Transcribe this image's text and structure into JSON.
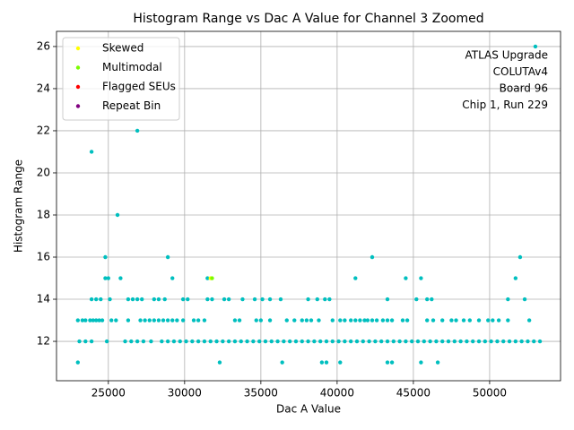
{
  "chart_data": {
    "type": "scatter",
    "title": "Histogram Range vs Dac A Value for Channel 3 Zoomed",
    "x_label": "Dac A Value",
    "y_label": "Histogram Range",
    "annotation": [
      "ATLAS Upgrade",
      "COLUTAv4",
      "Board 96",
      "Chip 1, Run 229"
    ],
    "xlim": [
      21600,
      54650
    ],
    "ylim": [
      10.13,
      26.72
    ],
    "xticks": [
      25000,
      30000,
      35000,
      40000,
      45000,
      50000
    ],
    "yticks": [
      12,
      14,
      16,
      18,
      20,
      22,
      24,
      26
    ],
    "grid": true,
    "legend": "upper left",
    "series": [
      {
        "color": "#00bfbf",
        "x": [
          23000,
          23900,
          25600,
          24800,
          26900,
          28900,
          29200,
          25800,
          24800,
          25000,
          31500,
          32300,
          36400,
          39000,
          39300,
          40200,
          41200,
          42300,
          43300,
          43600,
          44500,
          45500,
          45500,
          46600,
          51700,
          52000,
          53000,
          23900,
          24200,
          24500,
          25100,
          26300,
          26600,
          26900,
          27200,
          28000,
          28300,
          28700,
          29900,
          30200,
          31500,
          31800,
          32600,
          32900,
          33800,
          34600,
          35100,
          35600,
          36300,
          38100,
          38700,
          39200,
          39500,
          43300,
          45200,
          45900,
          46200,
          51200,
          52300,
          23000,
          23300,
          23500,
          23800,
          24000,
          24200,
          24400,
          24600,
          25200,
          25500,
          26300,
          27100,
          27400,
          27700,
          28000,
          28300,
          28600,
          28900,
          29200,
          29500,
          29900,
          30600,
          30900,
          31300,
          33300,
          33600,
          34700,
          35000,
          35600,
          36700,
          37200,
          37700,
          38000,
          38300,
          38800,
          39700,
          40200,
          40500,
          40900,
          41200,
          41500,
          41800,
          42000,
          42300,
          42600,
          43000,
          43300,
          43600,
          44300,
          44600,
          45900,
          46300,
          46900,
          47500,
          47800,
          48300,
          48700,
          49300,
          49900,
          50200,
          50600,
          51200,
          52600,
          23100,
          23500,
          23900,
          24900,
          26100,
          26500,
          26900,
          27300,
          27800,
          28500,
          28900,
          29300,
          29700,
          30100,
          30500,
          30900,
          31300,
          31700,
          32100,
          32500,
          32900,
          33300,
          33700,
          34100,
          34500,
          34900,
          35300,
          35700,
          36100,
          36500,
          36900,
          37300,
          37700,
          38100,
          38500,
          38900,
          39300,
          39700,
          40100,
          40500,
          40900,
          41300,
          41700,
          42100,
          42500,
          42900,
          43300,
          43700,
          44100,
          44500,
          44900,
          45300,
          45700,
          46100,
          46500,
          46900,
          47300,
          47700,
          48100,
          48500,
          48900,
          49300,
          49700,
          50100,
          50500,
          50900,
          51300,
          51700,
          52100,
          52500,
          52900,
          53300
        ],
        "values": [
          11,
          21,
          18,
          16,
          22,
          16,
          15,
          15,
          15,
          15,
          15,
          11,
          11,
          11,
          11,
          11,
          15,
          16,
          11,
          11,
          15,
          11,
          15,
          11,
          15,
          16,
          26,
          14,
          14,
          14,
          14,
          14,
          14,
          14,
          14,
          14,
          14,
          14,
          14,
          14,
          14,
          14,
          14,
          14,
          14,
          14,
          14,
          14,
          14,
          14,
          14,
          14,
          14,
          14,
          14,
          14,
          14,
          14,
          14,
          13,
          13,
          13,
          13,
          13,
          13,
          13,
          13,
          13,
          13,
          13,
          13,
          13,
          13,
          13,
          13,
          13,
          13,
          13,
          13,
          13,
          13,
          13,
          13,
          13,
          13,
          13,
          13,
          13,
          13,
          13,
          13,
          13,
          13,
          13,
          13,
          13,
          13,
          13,
          13,
          13,
          13,
          13,
          13,
          13,
          13,
          13,
          13,
          13,
          13,
          13,
          13,
          13,
          13,
          13,
          13,
          13,
          13,
          13,
          13,
          13,
          13,
          13,
          12,
          12,
          12,
          12,
          12,
          12,
          12,
          12,
          12,
          12,
          12,
          12,
          12,
          12,
          12,
          12,
          12,
          12,
          12,
          12,
          12,
          12,
          12,
          12,
          12,
          12,
          12,
          12,
          12,
          12,
          12,
          12,
          12,
          12,
          12,
          12,
          12,
          12,
          12,
          12,
          12,
          12,
          12,
          12,
          12,
          12,
          12,
          12,
          12,
          12,
          12,
          12,
          12,
          12,
          12,
          12,
          12,
          12,
          12,
          12,
          12,
          12,
          12,
          12,
          12,
          12,
          12,
          12,
          12,
          12,
          12,
          12
        ]
      },
      {
        "name": "Skewed",
        "color": "#ffff00",
        "x": [
          31700
        ],
        "values": [
          15
        ]
      },
      {
        "name": "Multimodal",
        "color": "#7cfc00",
        "x": [
          31800
        ],
        "values": [
          15
        ]
      },
      {
        "name": "Flagged SEUs",
        "color": "#ff0000",
        "x": [],
        "values": []
      },
      {
        "name": "Repeat Bin",
        "color": "#800080",
        "x": [],
        "values": []
      }
    ]
  }
}
